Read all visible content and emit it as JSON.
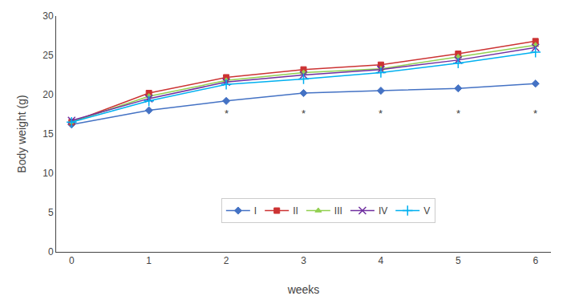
{
  "chart_data": {
    "type": "line",
    "x": [
      0,
      1,
      2,
      3,
      4,
      5,
      6
    ],
    "series": [
      {
        "name": "I",
        "color": "#4472C4",
        "marker": "diamond",
        "values": [
          16.2,
          18.0,
          19.2,
          20.2,
          20.5,
          20.8,
          21.4
        ]
      },
      {
        "name": "II",
        "color": "#CC3333",
        "marker": "square",
        "values": [
          16.5,
          20.2,
          22.2,
          23.2,
          23.8,
          25.2,
          26.8
        ]
      },
      {
        "name": "III",
        "color": "#92D050",
        "marker": "triangle",
        "values": [
          16.5,
          19.8,
          21.8,
          22.8,
          23.3,
          24.8,
          26.3
        ]
      },
      {
        "name": "IV",
        "color": "#7030A0",
        "marker": "x",
        "values": [
          16.7,
          19.5,
          21.6,
          22.5,
          23.2,
          24.4,
          26.0
        ]
      },
      {
        "name": "V",
        "color": "#00B0F0",
        "marker": "plus",
        "values": [
          16.5,
          19.2,
          21.3,
          22.0,
          22.8,
          24.0,
          25.4
        ]
      }
    ],
    "annotations": [
      {
        "x": 2,
        "y": 18.6,
        "text": "*"
      },
      {
        "x": 3,
        "y": 18.6,
        "text": "*"
      },
      {
        "x": 4,
        "y": 18.6,
        "text": "*"
      },
      {
        "x": 5,
        "y": 18.6,
        "text": "*"
      },
      {
        "x": 6,
        "y": 18.6,
        "text": "*"
      }
    ],
    "xlabel": "weeks",
    "ylabel": "Body weight (g)",
    "xlim": [
      -0.2,
      6.2
    ],
    "xticks": [
      0,
      1,
      2,
      3,
      4,
      5,
      6
    ],
    "ylim": [
      0,
      30
    ],
    "yticks": [
      0,
      5,
      10,
      15,
      20,
      25,
      30
    ],
    "grid": false,
    "legend": "bottom"
  }
}
